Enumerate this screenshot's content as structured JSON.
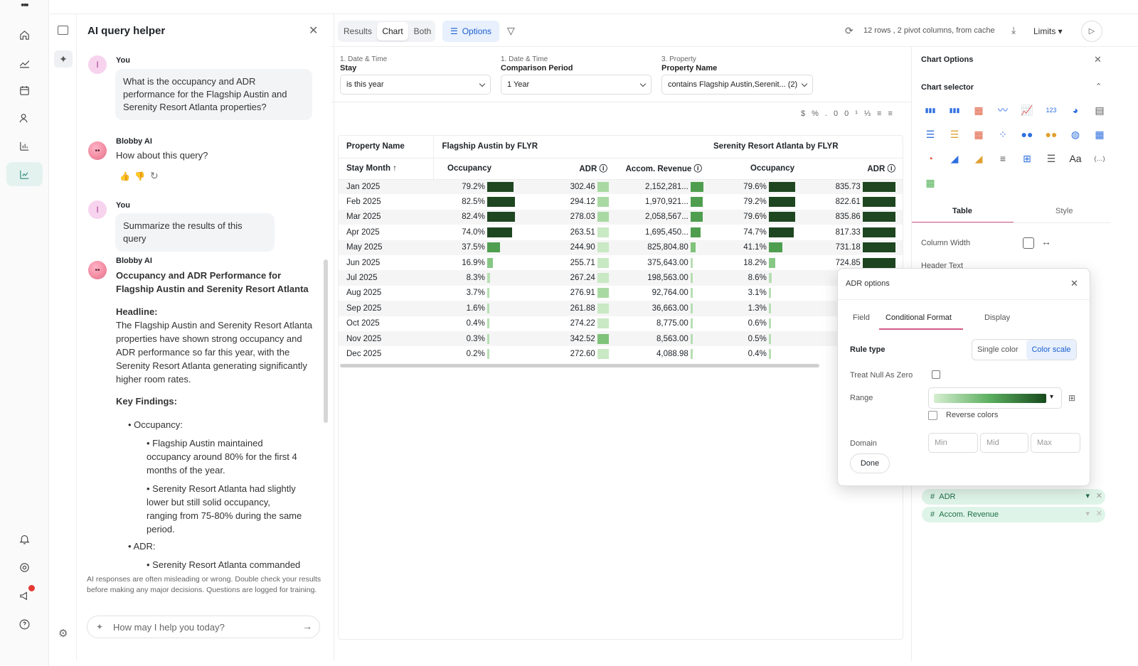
{
  "ai_panel": {
    "title": "AI query helper",
    "messages": [
      {
        "who": "You",
        "avatar": "I",
        "text": "What is the occupancy and ADR performance for the Flagship Austin and Serenity Resort Atlanta properties?"
      },
      {
        "who": "Blobby AI",
        "text": "How about this query?"
      },
      {
        "who": "You",
        "avatar": "I",
        "text": "Summarize the results of this query"
      },
      {
        "who": "Blobby AI",
        "heading": "Occupancy and ADR Performance for Flagship Austin and Serenity Resort Atlanta",
        "headline_label": "Headline:",
        "headline": "The Flagship Austin and Serenity Resort Atlanta properties have shown strong occupancy and ADR performance so far this year, with the Serenity Resort Atlanta generating significantly higher room rates.",
        "findings_label": "Key Findings:",
        "bullet_occupancy": "Occupancy:",
        "sub1": "Flagship Austin maintained occupancy around 80% for the first 4 months of the year.",
        "sub2": "Serenity Resort Atlanta had slightly lower but still solid occupancy, ranging from 75-80% during the same period.",
        "bullet_adr": "ADR:",
        "sub3": "Serenity Resort Atlanta commanded"
      }
    ],
    "disclaimer": "AI responses are often misleading or wrong. Double check your results before making any major decisions. Questions are logged for training.",
    "input_placeholder": "How may I help you today?"
  },
  "toolbar": {
    "tabs": [
      "Results",
      "Chart",
      "Both"
    ],
    "options": "Options",
    "status": "12 rows , 2 pivot columns, from cache",
    "limits": "Limits"
  },
  "filters": [
    {
      "label": "1. Date & Time",
      "name": "Stay",
      "value": "is this year"
    },
    {
      "label": "1. Date & Time",
      "name": "Comparison Period",
      "value": "1 Year"
    },
    {
      "label": "3. Property",
      "name": "Property Name",
      "value": "contains Flagship Austin,Serenit... (2)"
    }
  ],
  "table": {
    "h1": "Property Name",
    "group1": "Flagship Austin by FLYR",
    "group2": "Serenity Resort Atlanta by FLYR",
    "h2": "Stay Month ↑",
    "cols": [
      "Occupancy",
      "ADR",
      "Accom. Revenue",
      "Occupancy",
      "ADR"
    ],
    "rows": [
      [
        "Jan 2025",
        "79.2%",
        "302.46",
        "2,152,281...",
        "79.6%",
        "835.73"
      ],
      [
        "Feb 2025",
        "82.5%",
        "294.12",
        "1,970,921...",
        "79.2%",
        "822.61"
      ],
      [
        "Mar 2025",
        "82.4%",
        "278.03",
        "2,058,567...",
        "79.6%",
        "835.86"
      ],
      [
        "Apr 2025",
        "74.0%",
        "263.51",
        "1,695,450...",
        "74.7%",
        "817.33"
      ],
      [
        "May 2025",
        "37.5%",
        "244.90",
        "825,804.80",
        "41.1%",
        "731.18"
      ],
      [
        "Jun 2025",
        "16.9%",
        "255.71",
        "375,643.00",
        "18.2%",
        "724.85"
      ],
      [
        "Jul 2025",
        "8.3%",
        "267.24",
        "198,563.00",
        "8.6%",
        ""
      ],
      [
        "Aug 2025",
        "3.7%",
        "276.91",
        "92,764.00",
        "3.1%",
        ""
      ],
      [
        "Sep 2025",
        "1.6%",
        "261.88",
        "36,663.00",
        "1.3%",
        ""
      ],
      [
        "Oct 2025",
        "0.4%",
        "274.22",
        "8,775.00",
        "0.6%",
        ""
      ],
      [
        "Nov 2025",
        "0.3%",
        "342.52",
        "8,563.00",
        "0.5%",
        ""
      ],
      [
        "Dec 2025",
        "0.2%",
        "272.60",
        "4,088.98",
        "0.4%",
        ""
      ]
    ]
  },
  "chart_options": {
    "title": "Chart Options",
    "selector": "Chart selector",
    "tab_table": "Table",
    "tab_style": "Style",
    "column_width": "Column Width",
    "header_text": "Header Text",
    "pills": [
      "ADR",
      "Accom. Revenue"
    ]
  },
  "modal": {
    "title": "ADR options",
    "tabs": [
      "Field",
      "Conditional Format",
      "Display"
    ],
    "rule_type": "Rule type",
    "single": "Single color",
    "scale": "Color scale",
    "null_zero": "Treat Null As Zero",
    "range": "Range",
    "reverse": "Reverse colors",
    "domain": "Domain",
    "min": "Min",
    "mid": "Mid",
    "max": "Max",
    "done": "Done"
  },
  "colors": {
    "dark_green": "#1e4620",
    "light_green": "#9fd19a",
    "accent": "#1a73e8"
  }
}
